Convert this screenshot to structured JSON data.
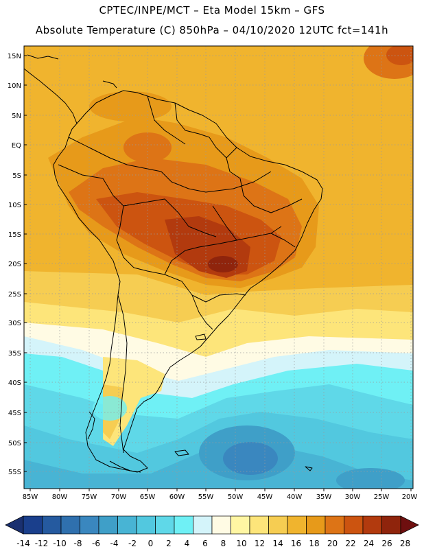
{
  "title": {
    "line1": "CPTEC/INPE/MCT –  Eta Model 15km – GFS",
    "line2": "Absolute Temperature (C) 850hPa – 04/10/2020 12UTC fct=141h"
  },
  "axes": {
    "lat_labels": [
      "15N",
      "10N",
      "5N",
      "EQ",
      "5S",
      "10S",
      "15S",
      "20S",
      "25S",
      "30S",
      "35S",
      "40S",
      "45S",
      "50S",
      "55S"
    ],
    "lon_labels": [
      "85W",
      "80W",
      "75W",
      "70W",
      "65W",
      "60W",
      "55W",
      "50W",
      "45W",
      "40W",
      "35W",
      "30W",
      "25W",
      "20W"
    ]
  },
  "colorbar": {
    "tick_labels": [
      "-14",
      "-12",
      "-10",
      "-8",
      "-6",
      "-4",
      "-2",
      "0",
      "2",
      "4",
      "6",
      "8",
      "10",
      "12",
      "14",
      "16",
      "18",
      "20",
      "22",
      "24",
      "26",
      "28"
    ],
    "colors": [
      "#1a3f8c",
      "#255a9f",
      "#2f70ae",
      "#3a87bf",
      "#3f9fc8",
      "#48b4d4",
      "#52c8df",
      "#5fd8e8",
      "#6ff0f5",
      "#d4f4fa",
      "#fffbe4",
      "#fff6a3",
      "#fde57a",
      "#f6cd52",
      "#f0b42e",
      "#e79a1a",
      "#dd7416",
      "#cc5410",
      "#b23a0e",
      "#8f240c"
    ],
    "low_extend_color": "#1a3070",
    "high_extend_color": "#6e0f0f"
  }
}
